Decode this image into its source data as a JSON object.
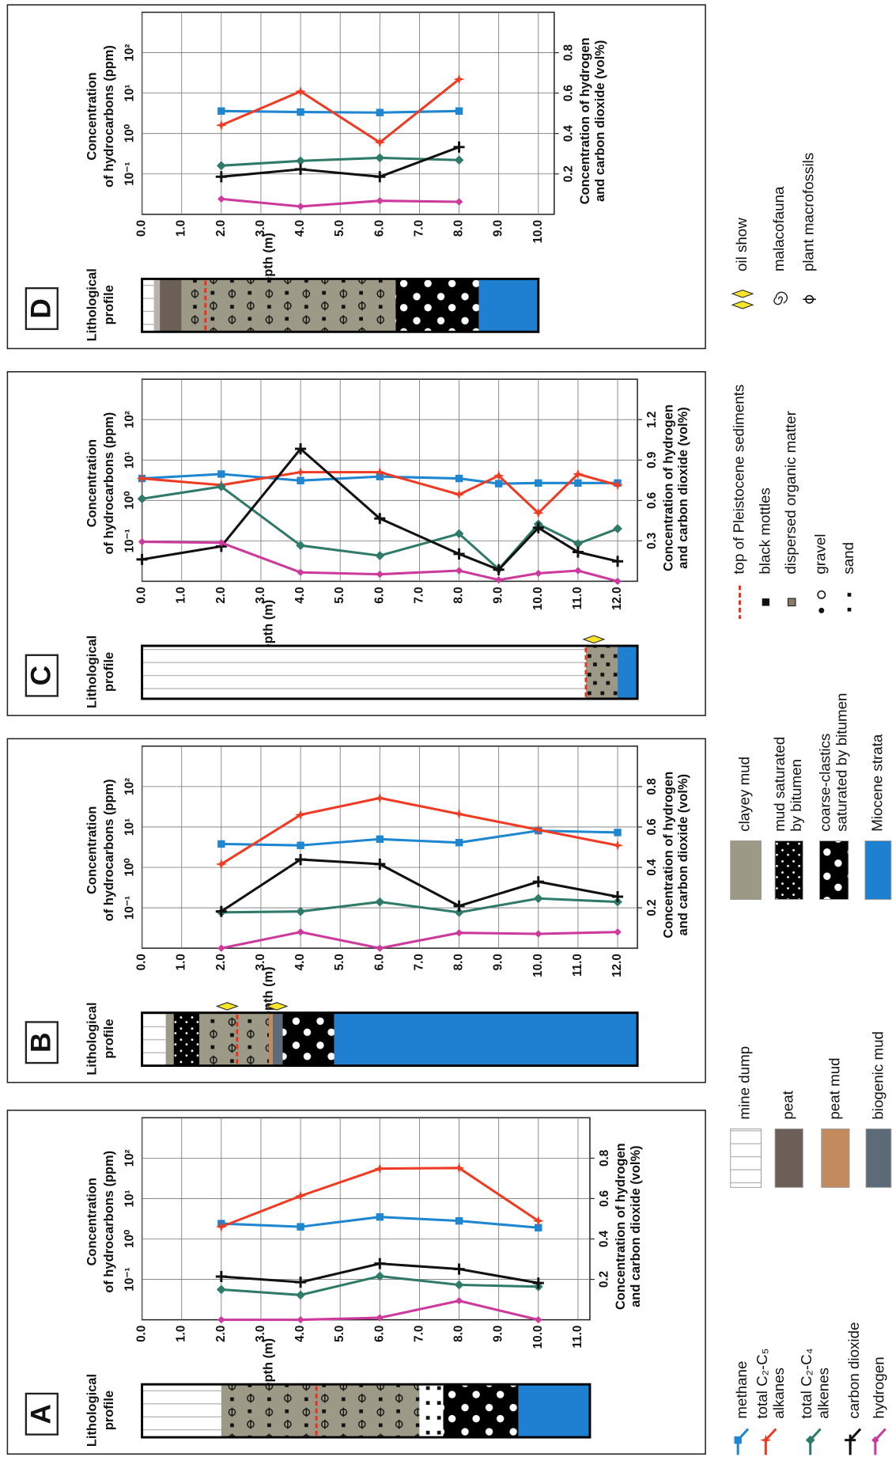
{
  "chart_data": [
    {
      "type": "line",
      "panel_label": "A",
      "profile_label": [
        "Lithological",
        "profile"
      ],
      "x_label": "Depth (m)",
      "y_label": [
        "Concentration",
        "of hydrocarbons (ppm)"
      ],
      "y2_label": [
        "Concentration of hydrogen",
        "and carbon dioxide (vol%)"
      ],
      "x": [
        2,
        4,
        6,
        8,
        10
      ],
      "xlim": [
        0,
        11.3
      ],
      "xticks": [
        {
          "value": 0,
          "label": "0.0"
        },
        {
          "value": 1,
          "label": "1.0"
        },
        {
          "value": 2,
          "label": "2.0"
        },
        {
          "value": 3,
          "label": "3.0"
        },
        {
          "value": 4,
          "label": "4.0"
        },
        {
          "value": 5,
          "label": "5.0"
        },
        {
          "value": 6,
          "label": "6.0"
        },
        {
          "value": 7,
          "label": "7.0"
        },
        {
          "value": 8,
          "label": "8.0"
        },
        {
          "value": 9,
          "label": "9.0"
        },
        {
          "value": 10,
          "label": "10.0"
        },
        {
          "value": 11,
          "label": "11.0"
        }
      ],
      "ylim": [
        0.01,
        1000
      ],
      "log_scale": true,
      "yticks": [
        {
          "value": 0.1,
          "label": "10⁻¹"
        },
        {
          "value": 1,
          "label": "10⁰"
        },
        {
          "value": 10,
          "label": "10¹"
        },
        {
          "value": 100,
          "label": "10²"
        }
      ],
      "y2lim": [
        0,
        1
      ],
      "y2ticks": [
        0.2,
        0.4,
        0.6,
        0.8
      ],
      "grid": true,
      "series": [
        {
          "color": "#1f86d0",
          "marker": "square",
          "values": [
            2.4,
            2.0,
            3.5,
            2.8,
            1.9
          ]
        },
        {
          "color": "#ee3b24",
          "marker": "star",
          "values": [
            2.0,
            11.6,
            55,
            57,
            2.8
          ]
        },
        {
          "color": "#2f7a68",
          "marker": "diamond",
          "values": [
            0.056,
            0.041,
            0.12,
            0.073,
            0.066
          ]
        },
        {
          "color": "#111111",
          "marker": "plus",
          "axis": "y2",
          "values": [
            0.214,
            0.186,
            0.278,
            0.251,
            0.182
          ]
        },
        {
          "color": "#cc3a9c",
          "marker": "dot",
          "axis": "y2",
          "values": [
            0,
            0,
            0.01,
            0.094,
            0
          ]
        }
      ],
      "profile": [
        {
          "from": 0,
          "to": 2,
          "fill": "url(#mine)"
        },
        {
          "from": 2,
          "to": 7,
          "fill": "url(#clayfos)"
        },
        {
          "from": 7,
          "to": 7.6,
          "fill": "url(#sand)"
        },
        {
          "from": 7.6,
          "to": 9.5,
          "fill": "url(#coarse)"
        },
        {
          "from": 9.5,
          "to": 11.3,
          "fill": "#1f7fd1"
        }
      ],
      "pleistocene_top": 4.4,
      "oil_show": []
    },
    {
      "type": "line",
      "panel_label": "B",
      "profile_label": [
        "Lithological",
        "profile"
      ],
      "x_label": "Depth (m)",
      "y_label": [
        "Concentration",
        "of hydrocarbons (ppm)"
      ],
      "y2_label": [
        "Concentration of hydrogen",
        "and carbon dioxide (vol%)"
      ],
      "x": [
        2,
        4,
        6,
        8,
        10,
        12
      ],
      "xlim": [
        0,
        12.5
      ],
      "xticks": [
        {
          "value": 0,
          "label": "0.0"
        },
        {
          "value": 1,
          "label": "1.0"
        },
        {
          "value": 2,
          "label": "2.0"
        },
        {
          "value": 3,
          "label": "3.0"
        },
        {
          "value": 4,
          "label": "4.0"
        },
        {
          "value": 5,
          "label": "5.0"
        },
        {
          "value": 6,
          "label": "6.0"
        },
        {
          "value": 7,
          "label": "7.0"
        },
        {
          "value": 8,
          "label": "8.0"
        },
        {
          "value": 9,
          "label": "9.0"
        },
        {
          "value": 10,
          "label": "10.0"
        },
        {
          "value": 11,
          "label": "11.0"
        },
        {
          "value": 12,
          "label": "12.0"
        }
      ],
      "ylim": [
        0.01,
        1000
      ],
      "log_scale": true,
      "yticks": [
        {
          "value": 0.1,
          "label": "10⁻¹"
        },
        {
          "value": 1,
          "label": "10⁰"
        },
        {
          "value": 10,
          "label": "10¹"
        },
        {
          "value": 100,
          "label": "10²"
        }
      ],
      "y2lim": [
        0,
        1
      ],
      "y2ticks": [
        0.2,
        0.4,
        0.6,
        0.8
      ],
      "grid": true,
      "series": [
        {
          "color": "#1f86d0",
          "marker": "square",
          "values": [
            3.8,
            3.5,
            5,
            4.1,
            8.1,
            7.3
          ]
        },
        {
          "color": "#ee3b24",
          "marker": "star",
          "values": [
            1.2,
            20,
            52,
            21,
            8.5,
            3.5
          ]
        },
        {
          "color": "#2f7a68",
          "marker": "diamond",
          "values": [
            0.077,
            0.081,
            0.14,
            0.077,
            0.17,
            0.14
          ]
        },
        {
          "color": "#111111",
          "marker": "plus",
          "axis": "y2",
          "values": [
            0.182,
            0.439,
            0.416,
            0.209,
            0.329,
            0.255
          ]
        },
        {
          "color": "#cc3a9c",
          "marker": "dot",
          "axis": "y2",
          "values": [
            0,
            0.08,
            0,
            0.076,
            0.071,
            0.08
          ]
        }
      ],
      "profile": [
        {
          "from": 0,
          "to": 0.6,
          "fill": "url(#mine)"
        },
        {
          "from": 0.6,
          "to": 0.8,
          "fill": "#9c9a86"
        },
        {
          "from": 0.8,
          "to": 1.45,
          "fill": "url(#mudsat)"
        },
        {
          "from": 1.45,
          "to": 3.2,
          "fill": "url(#clayfos)"
        },
        {
          "from": 3.2,
          "to": 3.3,
          "fill": "#c38a5e"
        },
        {
          "from": 3.3,
          "to": 3.55,
          "fill": "#5d6b78"
        },
        {
          "from": 3.55,
          "to": 4.85,
          "fill": "url(#coarse)"
        },
        {
          "from": 4.85,
          "to": 12.5,
          "fill": "#1f7fd1"
        }
      ],
      "pleistocene_top": 2.4,
      "oil_show": [
        2.15,
        3.4
      ]
    },
    {
      "type": "line",
      "panel_label": "C",
      "profile_label": [
        "Lithological",
        "profile"
      ],
      "x_label": "Depth (m)",
      "y_label": [
        "Concentration",
        "of hydrocarbons (ppm)"
      ],
      "y2_label": [
        "Concentration of hydrogen",
        "and carbon dioxide (vol%)"
      ],
      "x": [
        0,
        2,
        4,
        6,
        8,
        9,
        10,
        11,
        12
      ],
      "xlim": [
        0,
        12.5
      ],
      "xticks": [
        {
          "value": 0,
          "label": "0.0"
        },
        {
          "value": 1,
          "label": "1.0"
        },
        {
          "value": 2,
          "label": "2.0"
        },
        {
          "value": 3,
          "label": "3.0"
        },
        {
          "value": 4,
          "label": "4.0"
        },
        {
          "value": 5,
          "label": "5.0"
        },
        {
          "value": 6,
          "label": "6.0"
        },
        {
          "value": 7,
          "label": "7.0"
        },
        {
          "value": 8,
          "label": "8.0"
        },
        {
          "value": 9,
          "label": "9.0"
        },
        {
          "value": 10,
          "label": "10.0"
        },
        {
          "value": 11,
          "label": "11.0"
        },
        {
          "value": 12,
          "label": "12.0"
        }
      ],
      "ylim": [
        0.01,
        1000
      ],
      "log_scale": true,
      "yticks": [
        {
          "value": 0.1,
          "label": "10⁻¹"
        },
        {
          "value": 1,
          "label": "10⁰"
        },
        {
          "value": 10,
          "label": "10¹"
        },
        {
          "value": 100,
          "label": "10²"
        }
      ],
      "y2lim": [
        0,
        1.5
      ],
      "y2ticks": [
        0.3,
        0.6,
        0.9,
        1.2
      ],
      "grid": true,
      "series": [
        {
          "color": "#1f86d0",
          "marker": "square",
          "values": [
            3.5,
            4.5,
            3.1,
            3.9,
            3.5,
            2.6,
            2.7,
            2.7,
            2.7
          ]
        },
        {
          "color": "#ee3b24",
          "marker": "star",
          "values": [
            3.5,
            2.4,
            5,
            5,
            1.4,
            4.1,
            0.49,
            4.5,
            2.4
          ]
        },
        {
          "color": "#2f7a68",
          "marker": "diamond",
          "values": [
            1.1,
            2.2,
            0.077,
            0.043,
            0.15,
            0.02,
            0.26,
            0.085,
            0.2
          ]
        },
        {
          "color": "#111111",
          "marker": "plus",
          "axis": "y2",
          "values": [
            0.162,
            0.259,
            0.983,
            0.466,
            0.203,
            0.086,
            0.397,
            0.217,
            0.148
          ]
        },
        {
          "color": "#cc3a9c",
          "marker": "dot",
          "axis": "y2",
          "values": [
            0.293,
            0.286,
            0.066,
            0.052,
            0.079,
            0.01,
            0.059,
            0.079,
            0
          ]
        }
      ],
      "profile": [
        {
          "from": 0,
          "to": 11.2,
          "fill": "url(#mine)"
        },
        {
          "from": 11.2,
          "to": 12,
          "fill": "url(#mottle)"
        },
        {
          "from": 12,
          "to": 12.5,
          "fill": "#1f7fd1"
        }
      ],
      "pleistocene_top": 11.2,
      "oil_show": [
        11.4
      ]
    },
    {
      "type": "line",
      "panel_label": "D",
      "profile_label": [
        "Lithological",
        "profile"
      ],
      "x_label": "Depth (m)",
      "y_label": [
        "Concentration",
        "of hydrocarbons (ppm)"
      ],
      "y2_label": [
        "Concentration of hydrogen",
        "and carbon dioxide (vol%)"
      ],
      "x": [
        2,
        4,
        6,
        8
      ],
      "xlim": [
        0,
        10.4
      ],
      "xticks": [
        {
          "value": 0,
          "label": "0.0"
        },
        {
          "value": 1,
          "label": "1.0"
        },
        {
          "value": 2,
          "label": "2.0"
        },
        {
          "value": 3,
          "label": "3.0"
        },
        {
          "value": 4,
          "label": "4.0"
        },
        {
          "value": 5,
          "label": "5.0"
        },
        {
          "value": 6,
          "label": "6.0"
        },
        {
          "value": 7,
          "label": "7.0"
        },
        {
          "value": 8,
          "label": "8.0"
        },
        {
          "value": 9,
          "label": "9.0"
        },
        {
          "value": 10,
          "label": "10.0"
        }
      ],
      "ylim": [
        0.01,
        1000
      ],
      "log_scale": true,
      "yticks": [
        {
          "value": 0.1,
          "label": "10⁻¹"
        },
        {
          "value": 1,
          "label": "10⁰"
        },
        {
          "value": 10,
          "label": "10¹"
        },
        {
          "value": 100,
          "label": "10²"
        }
      ],
      "y2lim": [
        0,
        1
      ],
      "y2ticks": [
        0.2,
        0.4,
        0.6,
        0.8
      ],
      "grid": true,
      "series": [
        {
          "color": "#1f86d0",
          "marker": "square",
          "values": [
            3.6,
            3.4,
            3.3,
            3.6
          ]
        },
        {
          "color": "#ee3b24",
          "marker": "star",
          "values": [
            1.6,
            11,
            0.6,
            22
          ]
        },
        {
          "color": "#2f7a68",
          "marker": "diamond",
          "values": [
            0.16,
            0.21,
            0.25,
            0.22
          ]
        },
        {
          "color": "#111111",
          "marker": "plus",
          "axis": "y2",
          "values": [
            0.186,
            0.223,
            0.186,
            0.333
          ]
        },
        {
          "color": "#cc3a9c",
          "marker": "dot",
          "axis": "y2",
          "values": [
            0.076,
            0.039,
            0.067,
            0.062
          ]
        }
      ],
      "profile": [
        {
          "from": 0,
          "to": 0.3,
          "fill": "url(#mine)"
        },
        {
          "from": 0.3,
          "to": 0.45,
          "fill": "#b8b3ad"
        },
        {
          "from": 0.45,
          "to": 1,
          "fill": "#6b5f58"
        },
        {
          "from": 1,
          "to": 6.4,
          "fill": "url(#clayfos)"
        },
        {
          "from": 6.4,
          "to": 8.5,
          "fill": "url(#coarse)"
        },
        {
          "from": 8.5,
          "to": 10,
          "fill": "#1f7fd1"
        }
      ],
      "pleistocene_top": 1.6,
      "oil_show": []
    }
  ],
  "legend": {
    "series": [
      {
        "label": [
          "methane"
        ],
        "color": "#1f86d0",
        "marker": "square"
      },
      {
        "label": [
          "total C₂-C₅",
          "alkanes"
        ],
        "color": "#ee3b24",
        "marker": "star"
      },
      {
        "label": [
          "total C₂-C₄",
          "alkenes"
        ],
        "color": "#2f7a68",
        "marker": "diamond"
      },
      {
        "label": [
          "carbon dioxide"
        ],
        "color": "#111111",
        "marker": "plus"
      },
      {
        "label": [
          "hydrogen"
        ],
        "color": "#cc3a9c",
        "marker": "dot"
      }
    ],
    "lithology": [
      {
        "label": [
          "mine dump"
        ],
        "fill": "url(#mine)"
      },
      {
        "label": [
          "peat"
        ],
        "fill": "#6b5f58"
      },
      {
        "label": [
          "peat mud"
        ],
        "fill": "#c38a5e"
      },
      {
        "label": [
          "biogenic mud"
        ],
        "fill": "#5d6b78"
      },
      {
        "label": [
          "clayey mud"
        ],
        "fill": "#9c9a86"
      },
      {
        "label": [
          "mud saturated",
          "by bitumen"
        ],
        "fill": "url(#mudsat)"
      },
      {
        "label": [
          "coarse-clastics",
          "saturated by bitumen"
        ],
        "fill": "url(#coarse)"
      },
      {
        "label": [
          "Miocene strata"
        ],
        "fill": "#1f7fd1"
      }
    ],
    "symbols": [
      "top of Pleistocene sediments",
      "black mottles",
      "dispersed organic matter",
      "gravel",
      "sand",
      "oil show",
      "malacofauna",
      "plant macrofossils"
    ]
  }
}
